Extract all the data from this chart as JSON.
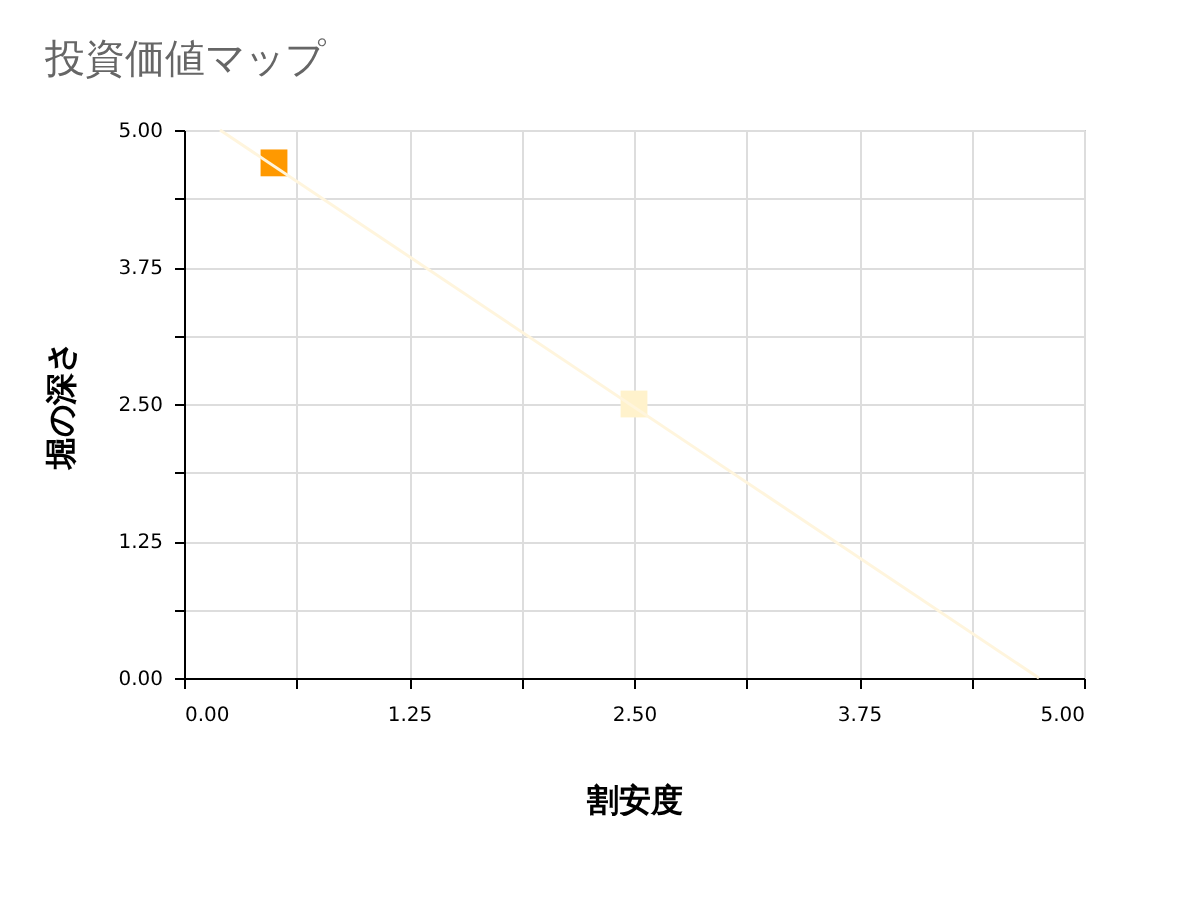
{
  "chart_data": {
    "type": "scatter",
    "title": "投資価値マップ",
    "xlabel": "割安度",
    "ylabel": "堀の深さ",
    "series": [
      {
        "color": "#ff9900",
        "x": [
          0.5
        ],
        "values": [
          4.7
        ],
        "marker": "square"
      },
      {
        "color": "#fff2cc",
        "x": [
          2.5
        ],
        "values": [
          2.5
        ],
        "marker": "square"
      },
      {
        "type": "line",
        "color": "#fff5dd",
        "x": [
          0.2,
          4.75
        ],
        "values": [
          5.0,
          0.0
        ],
        "line_style": "solid",
        "marker": "none"
      }
    ],
    "xlim": [
      0,
      5
    ],
    "ylim": [
      0,
      5
    ],
    "xticks": [
      {
        "value": 0,
        "label": "0.00"
      },
      {
        "value": 0.625,
        "label": null
      },
      {
        "value": 1.25,
        "label": "1.25"
      },
      {
        "value": 1.875,
        "label": null
      },
      {
        "value": 2.5,
        "label": "2.50"
      },
      {
        "value": 3.125,
        "label": null
      },
      {
        "value": 3.75,
        "label": "3.75"
      },
      {
        "value": 4.375,
        "label": null
      },
      {
        "value": 5,
        "label": "5.00"
      }
    ],
    "yticks": [
      {
        "value": 0,
        "label": "0.00"
      },
      {
        "value": 0.625,
        "label": null
      },
      {
        "value": 1.25,
        "label": "1.25"
      },
      {
        "value": 1.875,
        "label": null
      },
      {
        "value": 2.5,
        "label": "2.50"
      },
      {
        "value": 3.125,
        "label": null
      },
      {
        "value": 3.75,
        "label": "3.75"
      },
      {
        "value": 4.375,
        "label": null
      },
      {
        "value": 5,
        "label": "5.00"
      }
    ],
    "grid": true
  }
}
